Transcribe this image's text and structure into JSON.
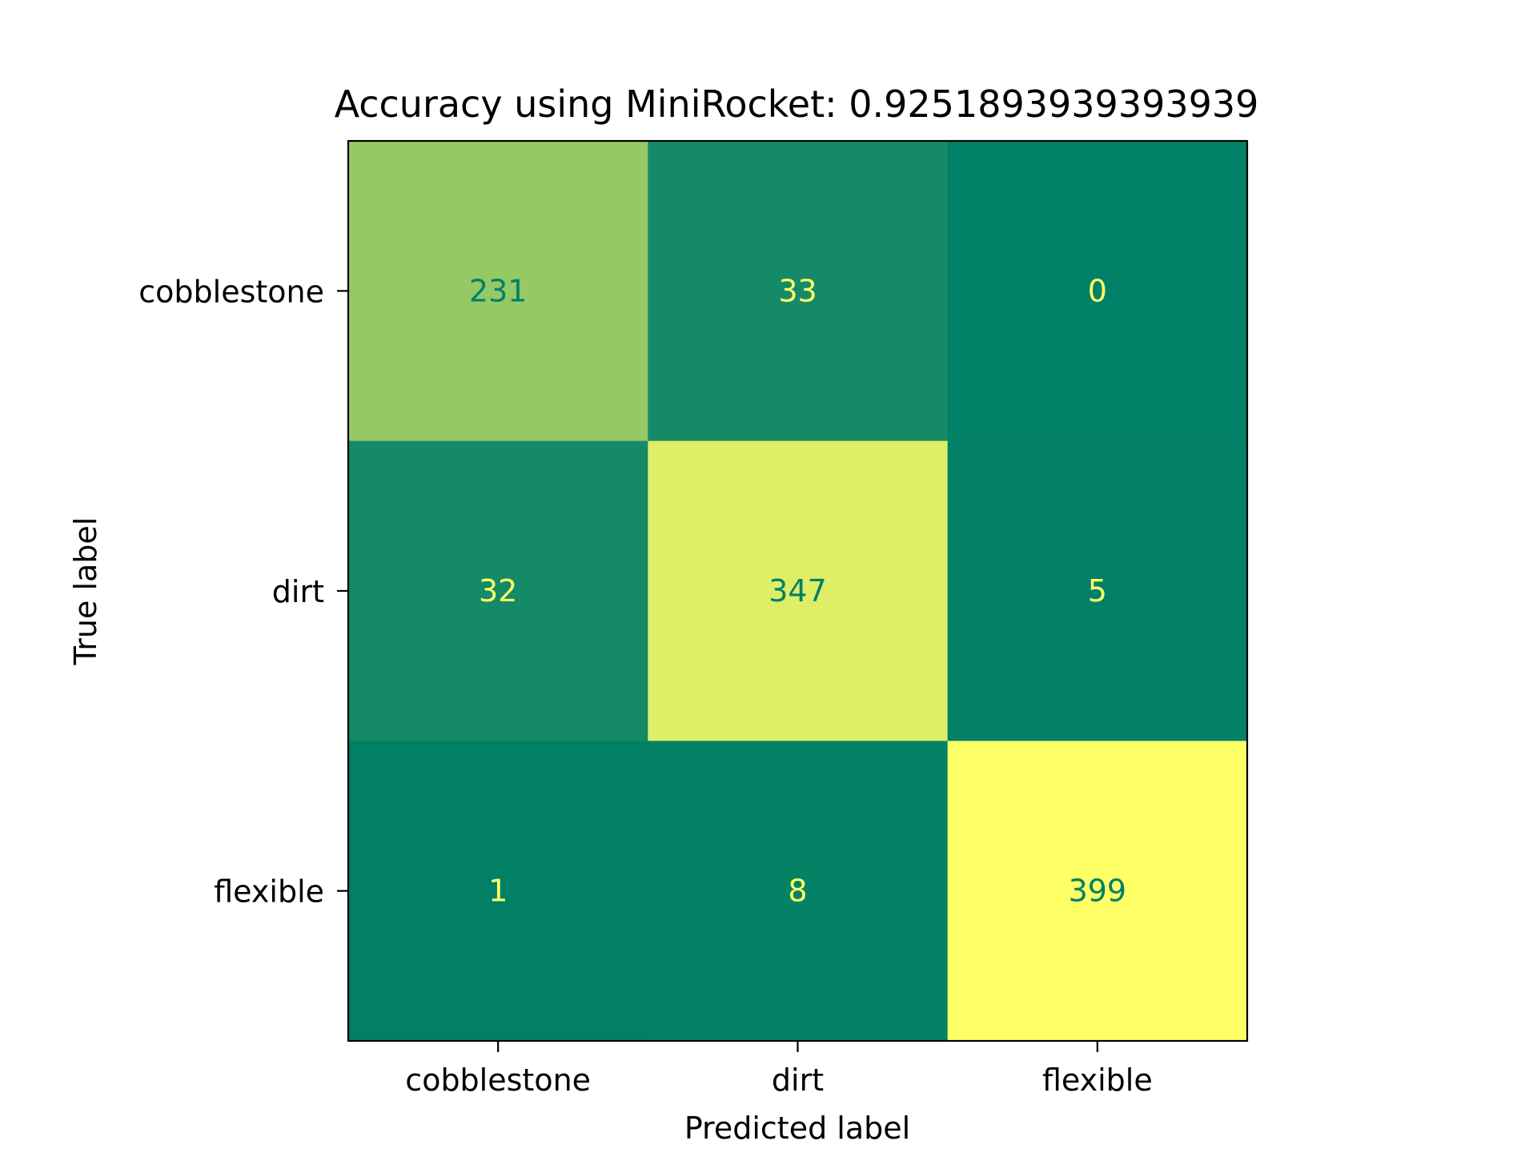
{
  "chart_data": {
    "type": "heatmap",
    "title": "Accuracy using MiniRocket: 0.9251893939393939",
    "xlabel": "Predicted label",
    "ylabel": "True label",
    "x_categories": [
      "cobblestone",
      "dirt",
      "flexible"
    ],
    "y_categories": [
      "cobblestone",
      "dirt",
      "flexible"
    ],
    "values": [
      [
        231,
        33,
        0
      ],
      [
        32,
        347,
        5
      ],
      [
        1,
        8,
        399
      ]
    ],
    "colormap": "summer",
    "colorbar": false,
    "grid": false,
    "colors": {
      "low": "#008066",
      "high": "#ffff66",
      "text_on_dark": "#ffff66",
      "text_on_light": "#008066"
    }
  }
}
